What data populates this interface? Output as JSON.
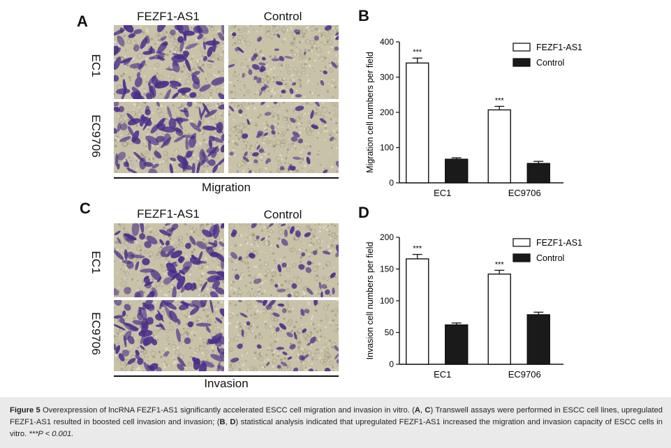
{
  "panels": {
    "A": {
      "letter": "A",
      "col_headers": [
        "FEZF1-AS1",
        "Control"
      ],
      "row_labels": [
        "EC1",
        "EC9706"
      ],
      "group_label": "Migration"
    },
    "C": {
      "letter": "C",
      "col_headers": [
        "FEZF1-AS1",
        "Control"
      ],
      "row_labels": [
        "EC1",
        "EC9706"
      ],
      "group_label": "Invasion"
    },
    "B": {
      "letter": "B"
    },
    "D": {
      "letter": "D"
    }
  },
  "colors": {
    "stain": "#4a2e8a",
    "background": "#c8c2a8",
    "bar_control": "#1a1a1a",
    "bar_fezf": "#ffffff"
  },
  "chart_data": [
    {
      "type": "bar",
      "panel": "B",
      "categories": [
        "EC1",
        "EC9706"
      ],
      "series": [
        {
          "name": "FEZF1-AS1",
          "values": [
            340,
            207
          ],
          "errors": [
            14,
            10
          ],
          "significance": [
            "***",
            "***"
          ]
        },
        {
          "name": "Control",
          "values": [
            67,
            55
          ],
          "errors": [
            4,
            6
          ],
          "significance": [
            "",
            ""
          ]
        }
      ],
      "ylabel": "Migration cell numbers per field",
      "yticks": [
        0,
        100,
        200,
        300,
        400
      ],
      "ylim": [
        0,
        400
      ],
      "legend": "top-right"
    },
    {
      "type": "bar",
      "panel": "D",
      "categories": [
        "EC1",
        "EC9706"
      ],
      "series": [
        {
          "name": "FEZF1-AS1",
          "values": [
            166,
            142
          ],
          "errors": [
            7,
            6
          ],
          "significance": [
            "***",
            "***"
          ]
        },
        {
          "name": "Control",
          "values": [
            62,
            78
          ],
          "errors": [
            3,
            4
          ],
          "significance": [
            "",
            ""
          ]
        }
      ],
      "ylabel": "Invasion cell numbers per field",
      "yticks": [
        0,
        50,
        100,
        150,
        200
      ],
      "ylim": [
        0,
        200
      ],
      "legend": "top-right"
    }
  ],
  "caption": {
    "figure_label": "Figure 5",
    "text1": " Overexpression of lncRNA FEZF1-AS1 significantly accelerated ESCC cell migration and invasion in vitro. (",
    "ref1": "A",
    "sep1": ", ",
    "ref2": "C",
    "text2": ") Transwell assays were performed in ESCC cell lines, upregulated FEZF1-AS1 resulted in boosted cell invasion and invasion; (",
    "ref3": "B",
    "sep2": ", ",
    "ref4": "D",
    "text3": ") statistical analysis indicated that upregulated FEZF1-AS1 increased the migration and invasion capacity of ESCC cells in vitro. ",
    "sig_note": "***P < 0.001."
  }
}
